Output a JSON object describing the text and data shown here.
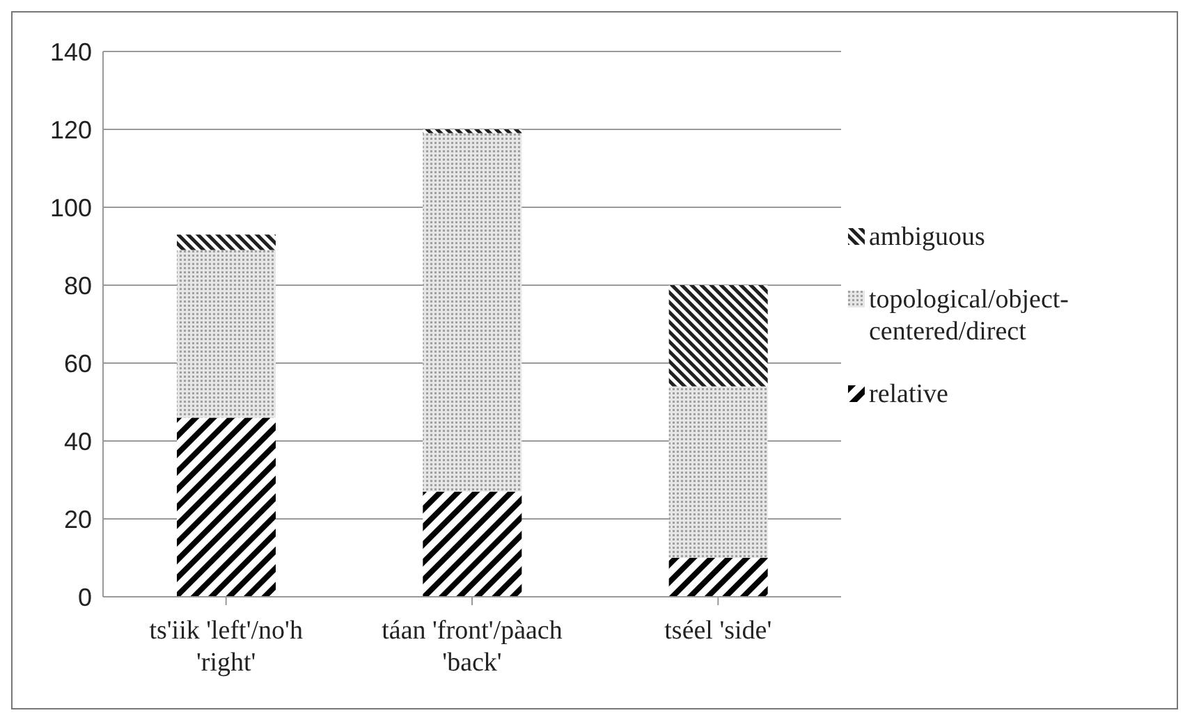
{
  "chart_data": {
    "type": "bar",
    "stacked": true,
    "categories": [
      "ts'iik 'left'/no'h 'right'",
      "táan 'front'/pàach 'back'",
      "tséel 'side'"
    ],
    "series": [
      {
        "name": "relative",
        "color": "#000000",
        "values": [
          46,
          27,
          10
        ]
      },
      {
        "name": "topological/object-centered/direct",
        "color": "#a0a0a0",
        "values": [
          43,
          92,
          44
        ]
      },
      {
        "name": "ambiguous",
        "color": "#202020",
        "values": [
          4,
          1,
          26
        ]
      }
    ],
    "ylim": [
      0,
      140
    ],
    "yticks": [
      0,
      20,
      40,
      60,
      80,
      100,
      120,
      140
    ],
    "grid": "y",
    "legend": "right"
  }
}
